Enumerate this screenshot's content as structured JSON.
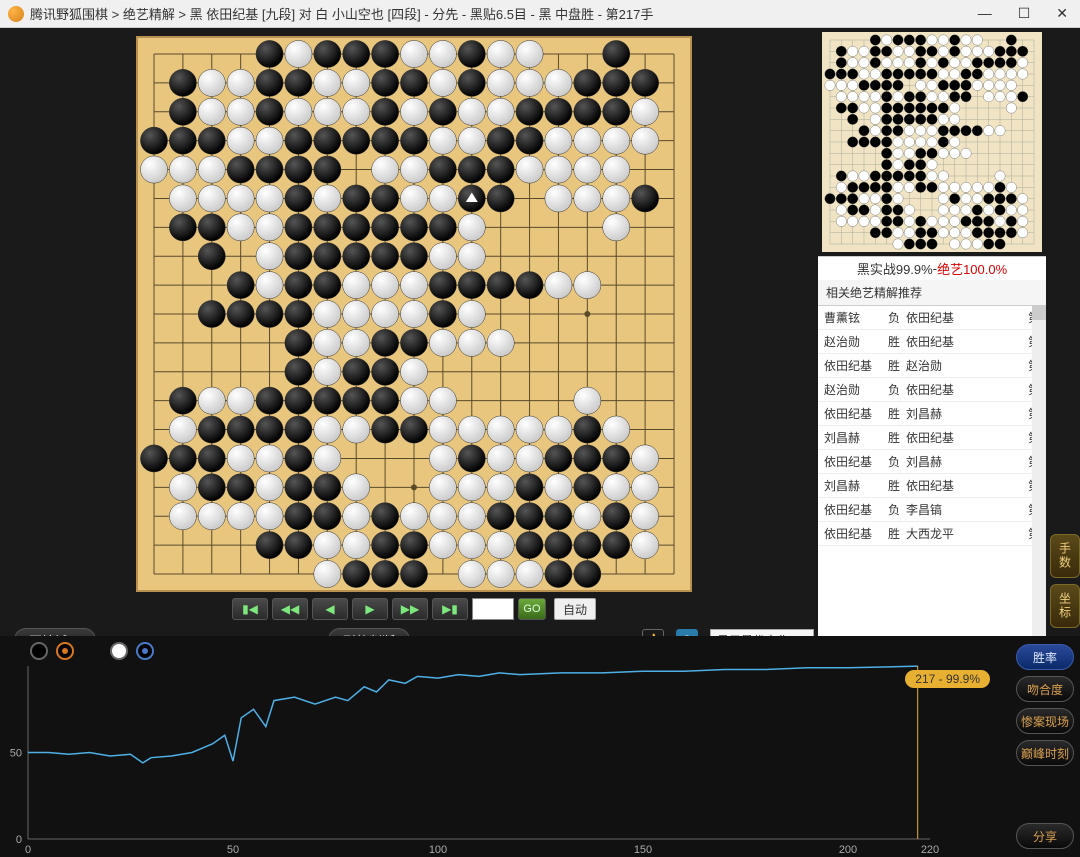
{
  "window": {
    "title": "腾讯野狐围棋 > 绝艺精解 > 黑 依田纪基 [九段] 对 白 小山空也 [四段] - 分先 - 黑贴6.5目 - 黑 中盘胜 - 第217手"
  },
  "board": {
    "size": 19,
    "background": "#e8c67d",
    "line_color": "#5a4a2a",
    "star_points": [
      [
        3,
        3
      ],
      [
        9,
        3
      ],
      [
        15,
        3
      ],
      [
        3,
        9
      ],
      [
        9,
        9
      ],
      [
        15,
        9
      ],
      [
        3,
        15
      ],
      [
        9,
        15
      ],
      [
        15,
        15
      ]
    ],
    "last_move": [
      11,
      5
    ],
    "stones": {
      "black": [
        [
          4,
          0
        ],
        [
          6,
          0
        ],
        [
          7,
          0
        ],
        [
          8,
          0
        ],
        [
          11,
          0
        ],
        [
          16,
          0
        ],
        [
          1,
          1
        ],
        [
          4,
          1
        ],
        [
          5,
          1
        ],
        [
          8,
          1
        ],
        [
          9,
          1
        ],
        [
          11,
          1
        ],
        [
          15,
          1
        ],
        [
          16,
          1
        ],
        [
          17,
          1
        ],
        [
          1,
          2
        ],
        [
          4,
          2
        ],
        [
          8,
          2
        ],
        [
          10,
          2
        ],
        [
          13,
          2
        ],
        [
          14,
          2
        ],
        [
          15,
          2
        ],
        [
          16,
          2
        ],
        [
          0,
          3
        ],
        [
          1,
          3
        ],
        [
          2,
          3
        ],
        [
          5,
          3
        ],
        [
          6,
          3
        ],
        [
          7,
          3
        ],
        [
          8,
          3
        ],
        [
          9,
          3
        ],
        [
          12,
          3
        ],
        [
          13,
          3
        ],
        [
          3,
          4
        ],
        [
          4,
          4
        ],
        [
          5,
          4
        ],
        [
          6,
          4
        ],
        [
          10,
          4
        ],
        [
          11,
          4
        ],
        [
          12,
          4
        ],
        [
          5,
          5
        ],
        [
          7,
          5
        ],
        [
          8,
          5
        ],
        [
          11,
          5
        ],
        [
          12,
          5
        ],
        [
          17,
          5
        ],
        [
          1,
          6
        ],
        [
          2,
          6
        ],
        [
          5,
          6
        ],
        [
          6,
          6
        ],
        [
          7,
          6
        ],
        [
          8,
          6
        ],
        [
          9,
          6
        ],
        [
          10,
          6
        ],
        [
          2,
          7
        ],
        [
          5,
          7
        ],
        [
          6,
          7
        ],
        [
          7,
          7
        ],
        [
          8,
          7
        ],
        [
          9,
          7
        ],
        [
          3,
          8
        ],
        [
          5,
          8
        ],
        [
          6,
          8
        ],
        [
          10,
          8
        ],
        [
          11,
          8
        ],
        [
          12,
          8
        ],
        [
          13,
          8
        ],
        [
          2,
          9
        ],
        [
          3,
          9
        ],
        [
          4,
          9
        ],
        [
          5,
          9
        ],
        [
          10,
          9
        ],
        [
          5,
          10
        ],
        [
          8,
          10
        ],
        [
          9,
          10
        ],
        [
          5,
          11
        ],
        [
          7,
          11
        ],
        [
          8,
          11
        ],
        [
          1,
          12
        ],
        [
          4,
          12
        ],
        [
          5,
          12
        ],
        [
          6,
          12
        ],
        [
          7,
          12
        ],
        [
          8,
          12
        ],
        [
          2,
          13
        ],
        [
          3,
          13
        ],
        [
          4,
          13
        ],
        [
          5,
          13
        ],
        [
          8,
          13
        ],
        [
          9,
          13
        ],
        [
          15,
          13
        ],
        [
          0,
          14
        ],
        [
          1,
          14
        ],
        [
          2,
          14
        ],
        [
          5,
          14
        ],
        [
          11,
          14
        ],
        [
          14,
          14
        ],
        [
          15,
          14
        ],
        [
          16,
          14
        ],
        [
          2,
          15
        ],
        [
          3,
          15
        ],
        [
          5,
          15
        ],
        [
          6,
          15
        ],
        [
          13,
          15
        ],
        [
          15,
          15
        ],
        [
          5,
          16
        ],
        [
          6,
          16
        ],
        [
          8,
          16
        ],
        [
          12,
          16
        ],
        [
          13,
          16
        ],
        [
          14,
          16
        ],
        [
          16,
          16
        ],
        [
          4,
          17
        ],
        [
          5,
          17
        ],
        [
          8,
          17
        ],
        [
          9,
          17
        ],
        [
          13,
          17
        ],
        [
          14,
          17
        ],
        [
          15,
          17
        ],
        [
          16,
          17
        ],
        [
          7,
          18
        ],
        [
          8,
          18
        ],
        [
          9,
          18
        ],
        [
          14,
          18
        ],
        [
          15,
          18
        ]
      ],
      "white": [
        [
          5,
          0
        ],
        [
          9,
          0
        ],
        [
          10,
          0
        ],
        [
          12,
          0
        ],
        [
          13,
          0
        ],
        [
          2,
          1
        ],
        [
          3,
          1
        ],
        [
          6,
          1
        ],
        [
          7,
          1
        ],
        [
          10,
          1
        ],
        [
          12,
          1
        ],
        [
          13,
          1
        ],
        [
          14,
          1
        ],
        [
          2,
          2
        ],
        [
          3,
          2
        ],
        [
          5,
          2
        ],
        [
          6,
          2
        ],
        [
          7,
          2
        ],
        [
          9,
          2
        ],
        [
          11,
          2
        ],
        [
          12,
          2
        ],
        [
          17,
          2
        ],
        [
          3,
          3
        ],
        [
          4,
          3
        ],
        [
          10,
          3
        ],
        [
          11,
          3
        ],
        [
          14,
          3
        ],
        [
          15,
          3
        ],
        [
          16,
          3
        ],
        [
          17,
          3
        ],
        [
          0,
          4
        ],
        [
          1,
          4
        ],
        [
          2,
          4
        ],
        [
          8,
          4
        ],
        [
          9,
          4
        ],
        [
          13,
          4
        ],
        [
          14,
          4
        ],
        [
          15,
          4
        ],
        [
          16,
          4
        ],
        [
          1,
          5
        ],
        [
          2,
          5
        ],
        [
          3,
          5
        ],
        [
          4,
          5
        ],
        [
          6,
          5
        ],
        [
          9,
          5
        ],
        [
          10,
          5
        ],
        [
          14,
          5
        ],
        [
          15,
          5
        ],
        [
          16,
          5
        ],
        [
          3,
          6
        ],
        [
          4,
          6
        ],
        [
          11,
          6
        ],
        [
          16,
          6
        ],
        [
          4,
          7
        ],
        [
          10,
          7
        ],
        [
          11,
          7
        ],
        [
          4,
          8
        ],
        [
          7,
          8
        ],
        [
          8,
          8
        ],
        [
          9,
          8
        ],
        [
          14,
          8
        ],
        [
          15,
          8
        ],
        [
          6,
          9
        ],
        [
          7,
          9
        ],
        [
          8,
          9
        ],
        [
          9,
          9
        ],
        [
          11,
          9
        ],
        [
          6,
          10
        ],
        [
          7,
          10
        ],
        [
          10,
          10
        ],
        [
          11,
          10
        ],
        [
          12,
          10
        ],
        [
          6,
          11
        ],
        [
          9,
          11
        ],
        [
          2,
          12
        ],
        [
          3,
          12
        ],
        [
          9,
          12
        ],
        [
          10,
          12
        ],
        [
          15,
          12
        ],
        [
          1,
          13
        ],
        [
          6,
          13
        ],
        [
          7,
          13
        ],
        [
          10,
          13
        ],
        [
          11,
          13
        ],
        [
          12,
          13
        ],
        [
          13,
          13
        ],
        [
          14,
          13
        ],
        [
          16,
          13
        ],
        [
          3,
          14
        ],
        [
          4,
          14
        ],
        [
          6,
          14
        ],
        [
          10,
          14
        ],
        [
          12,
          14
        ],
        [
          13,
          14
        ],
        [
          17,
          14
        ],
        [
          1,
          15
        ],
        [
          4,
          15
        ],
        [
          7,
          15
        ],
        [
          10,
          15
        ],
        [
          11,
          15
        ],
        [
          12,
          15
        ],
        [
          14,
          15
        ],
        [
          16,
          15
        ],
        [
          17,
          15
        ],
        [
          1,
          16
        ],
        [
          2,
          16
        ],
        [
          3,
          16
        ],
        [
          4,
          16
        ],
        [
          7,
          16
        ],
        [
          9,
          16
        ],
        [
          10,
          16
        ],
        [
          11,
          16
        ],
        [
          15,
          16
        ],
        [
          17,
          16
        ],
        [
          6,
          17
        ],
        [
          7,
          17
        ],
        [
          10,
          17
        ],
        [
          11,
          17
        ],
        [
          12,
          17
        ],
        [
          17,
          17
        ],
        [
          6,
          18
        ],
        [
          11,
          18
        ],
        [
          12,
          18
        ],
        [
          13,
          18
        ]
      ]
    }
  },
  "mini_board": {
    "background": "#f0e4c4"
  },
  "eval": {
    "left_label": "黑实战99.9%",
    "separator": " - ",
    "right_label": "绝艺100.0%"
  },
  "controls": {
    "first": "▮◀",
    "prev_fast": "◀◀",
    "prev": "◀",
    "next": "▶",
    "next_fast": "▶▶",
    "last": "▶▮",
    "go": "GO",
    "auto": "自动",
    "try": "开始试下",
    "judge": "形势判断",
    "dropdown_label": "显示最优变化"
  },
  "recommended": {
    "header": "相关绝艺精解推荐",
    "rows": [
      {
        "p1": "曹薰铉",
        "res": "负",
        "p2": "依田纪基",
        "t": "第"
      },
      {
        "p1": "赵治勋",
        "res": "胜",
        "p2": "依田纪基",
        "t": "第"
      },
      {
        "p1": "依田纪基",
        "res": "胜",
        "p2": "赵治勋",
        "t": "第"
      },
      {
        "p1": "赵治勋",
        "res": "负",
        "p2": "依田纪基",
        "t": "第"
      },
      {
        "p1": "依田纪基",
        "res": "胜",
        "p2": "刘昌赫",
        "t": "第"
      },
      {
        "p1": "刘昌赫",
        "res": "胜",
        "p2": "依田纪基",
        "t": "第"
      },
      {
        "p1": "依田纪基",
        "res": "负",
        "p2": "刘昌赫",
        "t": "第"
      },
      {
        "p1": "刘昌赫",
        "res": "胜",
        "p2": "依田纪基",
        "t": "第"
      },
      {
        "p1": "依田纪基",
        "res": "负",
        "p2": "李昌镐",
        "t": "第"
      },
      {
        "p1": "依田纪基",
        "res": "胜",
        "p2": "大西龙平",
        "t": "第"
      }
    ]
  },
  "side_tabs": {
    "moves": "手数",
    "coords": "坐标"
  },
  "chart": {
    "marker_label": "217 - 99.9%",
    "y_ticks": [
      0,
      50
    ],
    "x_ticks": [
      0,
      50,
      100,
      150,
      200,
      220
    ],
    "x_max": 220,
    "line_color": "#4eb0e6",
    "points": [
      [
        0,
        50
      ],
      [
        5,
        50
      ],
      [
        10,
        49
      ],
      [
        15,
        50
      ],
      [
        20,
        48
      ],
      [
        25,
        49
      ],
      [
        28,
        44
      ],
      [
        30,
        47
      ],
      [
        35,
        48
      ],
      [
        40,
        50
      ],
      [
        45,
        55
      ],
      [
        48,
        60
      ],
      [
        50,
        45
      ],
      [
        52,
        70
      ],
      [
        55,
        75
      ],
      [
        58,
        65
      ],
      [
        60,
        80
      ],
      [
        65,
        82
      ],
      [
        70,
        78
      ],
      [
        75,
        82
      ],
      [
        78,
        80
      ],
      [
        82,
        88
      ],
      [
        85,
        85
      ],
      [
        88,
        92
      ],
      [
        92,
        90
      ],
      [
        95,
        94
      ],
      [
        100,
        93
      ],
      [
        105,
        95
      ],
      [
        110,
        94
      ],
      [
        115,
        96
      ],
      [
        120,
        95
      ],
      [
        130,
        96
      ],
      [
        140,
        96
      ],
      [
        150,
        97
      ],
      [
        160,
        97
      ],
      [
        170,
        98
      ],
      [
        180,
        98
      ],
      [
        190,
        99
      ],
      [
        200,
        99
      ],
      [
        210,
        99.5
      ],
      [
        217,
        99.9
      ]
    ],
    "buttons": {
      "winrate": "胜率",
      "match": "吻合度",
      "disaster": "惨案现场",
      "peak": "巅峰时刻",
      "share": "分享"
    }
  }
}
